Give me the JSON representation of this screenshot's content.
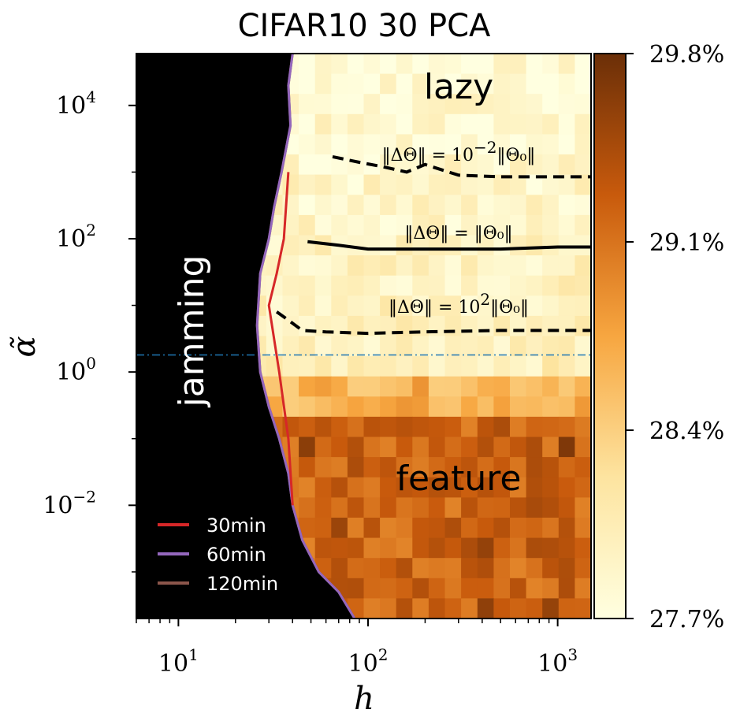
{
  "chart_data": {
    "type": "heatmap",
    "title": "CIFAR10 30 PCA",
    "xlabel": "h",
    "ylabel": "α̃",
    "x_scale": "log",
    "y_scale": "log",
    "xlim": [
      6,
      1500
    ],
    "ylim": [
      0.0002,
      60000
    ],
    "x_ticks": [
      {
        "value": 10,
        "label": "10",
        "exp": "1"
      },
      {
        "value": 100,
        "label": "10",
        "exp": "2"
      },
      {
        "value": 1000,
        "label": "10",
        "exp": "3"
      }
    ],
    "y_ticks": [
      {
        "value": 10000,
        "label": "10",
        "exp": "4"
      },
      {
        "value": 100,
        "label": "10",
        "exp": "2"
      },
      {
        "value": 1,
        "label": "10",
        "exp": "0"
      },
      {
        "value": 0.01,
        "label": "10",
        "exp": "−2"
      }
    ],
    "colorbar": {
      "min": 27.7,
      "max": 29.8,
      "ticks": [
        "29.8%",
        "29.1%",
        "28.4%",
        "27.7%"
      ],
      "tick_values": [
        29.8,
        29.1,
        28.4,
        27.7
      ],
      "colormap": "YlOrBr"
    },
    "regions": {
      "jamming": "jamming",
      "lazy": "lazy",
      "feature": "feature"
    },
    "jamming_boundary": {
      "points": [
        [
          40,
          60000
        ],
        [
          38,
          20000
        ],
        [
          39,
          5000
        ],
        [
          35,
          1000
        ],
        [
          32,
          300
        ],
        [
          30,
          100
        ],
        [
          27,
          30
        ],
        [
          26,
          5
        ],
        [
          27,
          1
        ],
        [
          30,
          0.3
        ],
        [
          34,
          0.1
        ],
        [
          38,
          0.03
        ],
        [
          40,
          0.01
        ],
        [
          45,
          0.003
        ],
        [
          55,
          0.001
        ],
        [
          70,
          0.0005
        ],
        [
          85,
          0.0002
        ]
      ],
      "color": "#b07a6a"
    },
    "jamming_fill_color": "#000000",
    "legend": [
      {
        "name": "30min",
        "color": "#d62728"
      },
      {
        "name": "60min",
        "color": "#9467bd"
      },
      {
        "name": "120min",
        "color": "#8c564b"
      }
    ],
    "legend_placement": "lower-left",
    "series": [
      {
        "name": "30min",
        "color": "#d62728",
        "points": [
          [
            38,
            1000
          ],
          [
            36,
            100
          ],
          [
            33,
            30
          ],
          [
            30,
            10
          ],
          [
            34,
            1
          ],
          [
            38,
            0.1
          ],
          [
            40,
            0.01
          ]
        ]
      },
      {
        "name": "60min",
        "color": "#9467bd",
        "points": [
          [
            40,
            60000
          ],
          [
            38,
            20000
          ],
          [
            39,
            5000
          ],
          [
            35,
            1000
          ],
          [
            32,
            300
          ],
          [
            30,
            100
          ],
          [
            27,
            30
          ],
          [
            26,
            5
          ],
          [
            27,
            1
          ],
          [
            30,
            0.3
          ],
          [
            34,
            0.1
          ],
          [
            38,
            0.03
          ],
          [
            40,
            0.01
          ],
          [
            45,
            0.003
          ],
          [
            55,
            0.001
          ],
          [
            70,
            0.0005
          ],
          [
            85,
            0.0002
          ]
        ]
      },
      {
        "name": "120min",
        "color": "#8c564b",
        "points": [
          [
            40,
            60000
          ],
          [
            38,
            20000
          ],
          [
            39,
            5000
          ],
          [
            35,
            1000
          ],
          [
            32,
            300
          ],
          [
            30,
            100
          ],
          [
            27,
            30
          ],
          [
            26,
            5
          ],
          [
            27,
            1
          ],
          [
            30,
            0.3
          ],
          [
            34,
            0.1
          ],
          [
            38,
            0.03
          ],
          [
            40,
            0.01
          ],
          [
            45,
            0.003
          ],
          [
            55,
            0.001
          ],
          [
            70,
            0.0005
          ],
          [
            85,
            0.0002
          ]
        ]
      }
    ],
    "contours": [
      {
        "label_text": "‖ΔΘ‖ = 10",
        "label_exp": "−2",
        "label_tail": "‖Θ₀‖",
        "style": "dashed",
        "points": [
          [
            65,
            1700
          ],
          [
            90,
            1400
          ],
          [
            120,
            1200
          ],
          [
            160,
            1000
          ],
          [
            200,
            1300
          ],
          [
            300,
            900
          ],
          [
            500,
            850
          ],
          [
            1500,
            850
          ]
        ]
      },
      {
        "label_text": "‖ΔΘ‖ = ‖Θ₀‖",
        "label_exp": "",
        "label_tail": "",
        "style": "solid",
        "points": [
          [
            48,
            90
          ],
          [
            70,
            80
          ],
          [
            100,
            70
          ],
          [
            200,
            70
          ],
          [
            500,
            70
          ],
          [
            1000,
            75
          ],
          [
            1500,
            75
          ]
        ]
      },
      {
        "label_text": "‖ΔΘ‖ = 10",
        "label_exp": "2",
        "label_tail": "‖Θ₀‖",
        "style": "dashed",
        "points": [
          [
            33,
            8
          ],
          [
            38,
            6
          ],
          [
            45,
            4.2
          ],
          [
            60,
            4.0
          ],
          [
            100,
            3.8
          ],
          [
            200,
            4.0
          ],
          [
            500,
            4.2
          ],
          [
            1500,
            4.2
          ]
        ]
      }
    ],
    "reference_line": {
      "y": 1.8,
      "color": "#1f77b4",
      "style": "dashdot"
    },
    "heatmap_grid": {
      "nx": 28,
      "ny": 28,
      "cell_values_description_free": true
    }
  }
}
